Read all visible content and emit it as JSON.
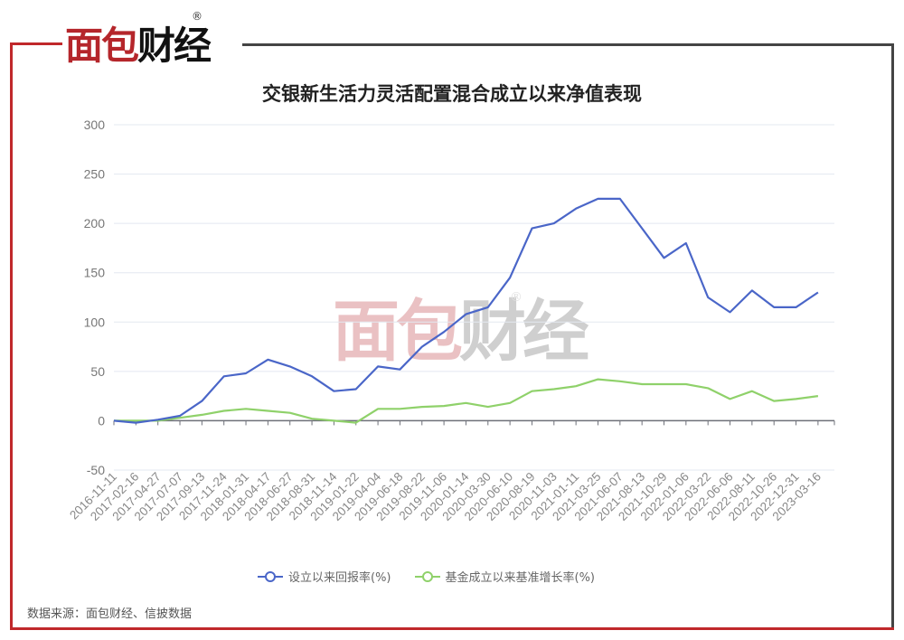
{
  "logo": {
    "text": "面包财经",
    "registered": "®"
  },
  "watermark": {
    "text": "面包财经",
    "registered": "®"
  },
  "colors": {
    "frame_red": "#c0282b",
    "frame_grey": "#444444",
    "blue_series": "#4a66c8",
    "green_series": "#8fd16a"
  },
  "source": "数据来源：面包财经、信披数据",
  "chart_data": {
    "type": "line",
    "title": "交银新生活力灵活配置混合成立以来净值表现",
    "xlabel": "",
    "ylabel": "",
    "ylim": [
      -50,
      300
    ],
    "yticks": [
      -50,
      0,
      50,
      100,
      150,
      200,
      250,
      300
    ],
    "grid": true,
    "legend_position": "bottom",
    "categories": [
      "2016-11-11",
      "2017-02-16",
      "2017-04-27",
      "2017-07-07",
      "2017-09-13",
      "2017-11-24",
      "2018-01-31",
      "2018-04-17",
      "2018-06-27",
      "2018-08-31",
      "2018-11-14",
      "2019-01-22",
      "2019-04-04",
      "2019-06-18",
      "2019-08-22",
      "2019-11-06",
      "2020-01-14",
      "2020-03-30",
      "2020-06-10",
      "2020-08-19",
      "2020-11-03",
      "2021-01-11",
      "2021-03-25",
      "2021-06-07",
      "2021-08-13",
      "2021-10-29",
      "2022-01-06",
      "2022-03-22",
      "2022-06-06",
      "2022-08-11",
      "2022-10-26",
      "2022-12-31",
      "2023-03-16"
    ],
    "series": [
      {
        "name": "设立以来回报率(%)",
        "color": "#4a66c8",
        "values": [
          0,
          -2,
          1,
          5,
          20,
          45,
          48,
          62,
          55,
          45,
          30,
          32,
          55,
          52,
          75,
          90,
          108,
          115,
          145,
          195,
          200,
          215,
          225,
          225,
          195,
          165,
          180,
          125,
          110,
          132,
          115,
          115,
          130
        ]
      },
      {
        "name": "基金成立以来基准增长率(%)",
        "color": "#8fd16a",
        "values": [
          0,
          0,
          0,
          3,
          6,
          10,
          12,
          10,
          8,
          2,
          0,
          -2,
          12,
          12,
          14,
          15,
          18,
          14,
          18,
          30,
          32,
          35,
          42,
          40,
          37,
          37,
          37,
          33,
          22,
          30,
          20,
          22,
          25
        ]
      }
    ]
  }
}
